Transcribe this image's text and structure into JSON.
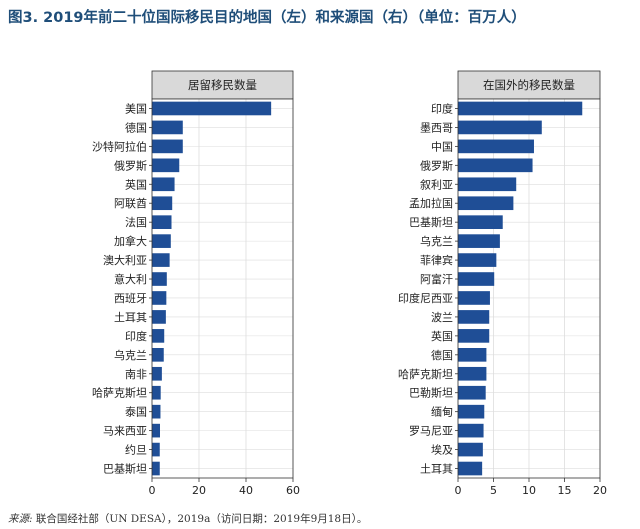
{
  "figure": {
    "title": "图3. 2019年前二十位国际移民目的地国（左）和来源国（右）（单位：百万人）",
    "source_label": "来源:",
    "source_text": " 联合国经社部（UN DESA），2019a（访问日期：2019年9月18日）。"
  },
  "colors": {
    "bar": "#1f4e96",
    "panel_header": "#d9d9d9",
    "grid": "#dddddd",
    "title": "#1f4e79"
  },
  "chart_data": [
    {
      "type": "bar",
      "orientation": "horizontal",
      "title": "居留移民数量",
      "categories": [
        "美国",
        "德国",
        "沙特阿拉伯",
        "俄罗斯",
        "英国",
        "阿联酋",
        "法国",
        "加拿大",
        "澳大利亚",
        "意大利",
        "西班牙",
        "土耳其",
        "印度",
        "乌克兰",
        "南非",
        "哈萨克斯坦",
        "泰国",
        "马来西亚",
        "约旦",
        "巴基斯坦"
      ],
      "values": [
        50.7,
        13.1,
        13.1,
        11.6,
        9.6,
        8.6,
        8.3,
        8.0,
        7.5,
        6.3,
        6.1,
        5.9,
        5.2,
        5.0,
        4.2,
        3.7,
        3.6,
        3.4,
        3.3,
        3.3
      ],
      "xlim": [
        0,
        60
      ],
      "xticks": [
        0,
        20,
        40,
        60
      ],
      "xlabel": "",
      "ylabel": "",
      "grid": true
    },
    {
      "type": "bar",
      "orientation": "horizontal",
      "title": "在国外的移民数量",
      "categories": [
        "印度",
        "墨西哥",
        "中国",
        "俄罗斯",
        "叙利亚",
        "孟加拉国",
        "巴基斯坦",
        "乌克兰",
        "菲律宾",
        "阿富汗",
        "印度尼西亚",
        "波兰",
        "英国",
        "德国",
        "哈萨克斯坦",
        "巴勒斯坦",
        "缅甸",
        "罗马尼亚",
        "埃及",
        "土耳其"
      ],
      "values": [
        17.5,
        11.8,
        10.7,
        10.5,
        8.2,
        7.8,
        6.3,
        5.9,
        5.4,
        5.1,
        4.5,
        4.4,
        4.4,
        4.0,
        4.0,
        3.9,
        3.7,
        3.6,
        3.5,
        3.4
      ],
      "xlim": [
        0,
        20
      ],
      "xticks": [
        0,
        5,
        10,
        15,
        20
      ],
      "xlabel": "",
      "ylabel": "",
      "grid": true
    }
  ]
}
